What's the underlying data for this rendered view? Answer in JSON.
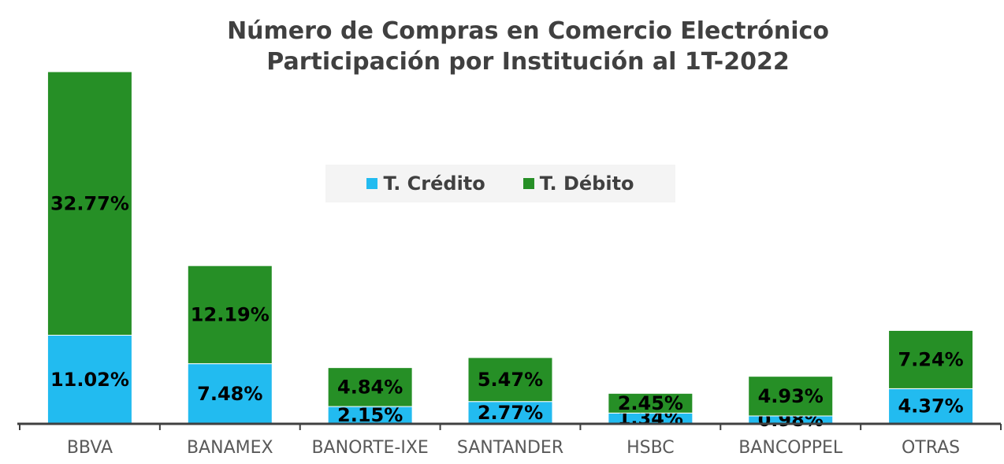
{
  "chart_data": {
    "type": "bar",
    "stacked": true,
    "title": [
      "Número de Compras en Comercio Electrónico",
      "Participación por Institución al 1T-2022"
    ],
    "categories": [
      "BBVA",
      "BANAMEX",
      "BANORTE-IXE",
      "SANTANDER",
      "HSBC",
      "BANCOPPEL",
      "OTRAS"
    ],
    "series": [
      {
        "name": "T. Crédito",
        "color": "#22bbf0",
        "values": [
          11.02,
          7.48,
          2.15,
          2.77,
          1.34,
          0.98,
          4.37
        ],
        "labels": [
          "11.02%",
          "7.48%",
          "2.15%",
          "2.77%",
          "1.34%",
          "0.98%",
          "4.37%"
        ]
      },
      {
        "name": "T. Débito",
        "color": "#268f26",
        "values": [
          32.77,
          12.19,
          4.84,
          5.47,
          2.45,
          4.93,
          7.24
        ],
        "labels": [
          "32.77%",
          "12.19%",
          "4.84%",
          "5.47%",
          "2.45%",
          "4.93%",
          "7.24%"
        ]
      }
    ],
    "ylim": [
      0,
      43.79
    ],
    "grid": false,
    "legend_position": "center"
  }
}
